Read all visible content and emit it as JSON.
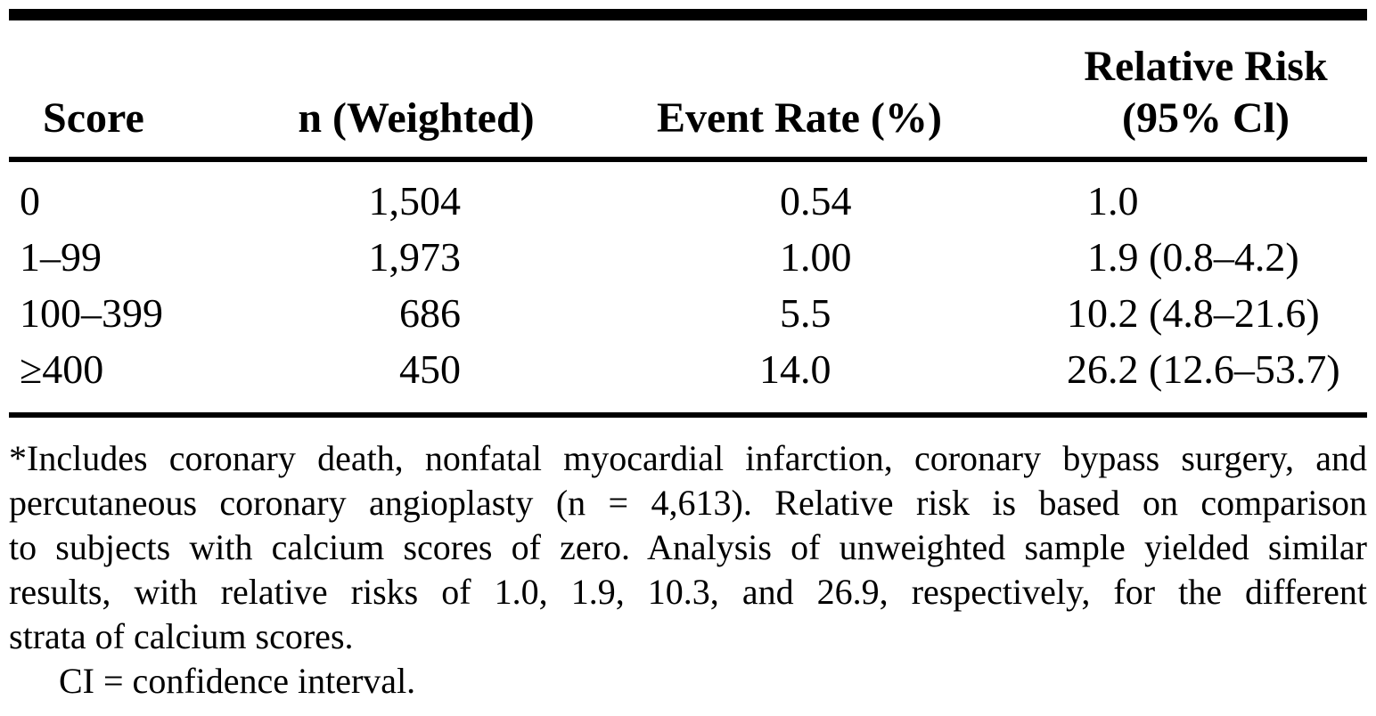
{
  "page": {
    "background_color": "#ffffff",
    "text_color": "#000000"
  },
  "table": {
    "headers": {
      "score": "Score",
      "n_weighted": "n (Weighted)",
      "event_rate": "Event Rate (%)",
      "relative_risk_line1": "Relative Risk",
      "relative_risk_line2": "(95% Cl)"
    },
    "rows": [
      {
        "score": "0",
        "n_weighted": "1,504",
        "event_rate": "0.54",
        "relative_risk": "1.0"
      },
      {
        "score": "1–99",
        "n_weighted": "1,973",
        "event_rate": "1.00",
        "relative_risk": "1.9 (0.8–4.2)"
      },
      {
        "score": "100–399",
        "n_weighted": "686",
        "event_rate": "5.5",
        "relative_risk": "10.2 (4.8–21.6)"
      },
      {
        "score": "≥400",
        "n_weighted": "450",
        "event_rate": "14.0",
        "relative_risk": "26.2 (12.6–53.7)"
      }
    ]
  },
  "footnotes": {
    "lines": [
      "*Includes coronary death, nonfatal myocardial infarction, coronary bypass surgery, and",
      "percutaneous coronary angioplasty (n = 4,613). Relative risk is based on comparison",
      "to subjects with calcium scores of zero. Analysis of unweighted sample yielded similar",
      "results, with relative risks of 1.0, 1.9, 10.3, and 26.9, respectively, for the different",
      "strata of calcium scores.",
      "CI = confidence interval."
    ]
  }
}
